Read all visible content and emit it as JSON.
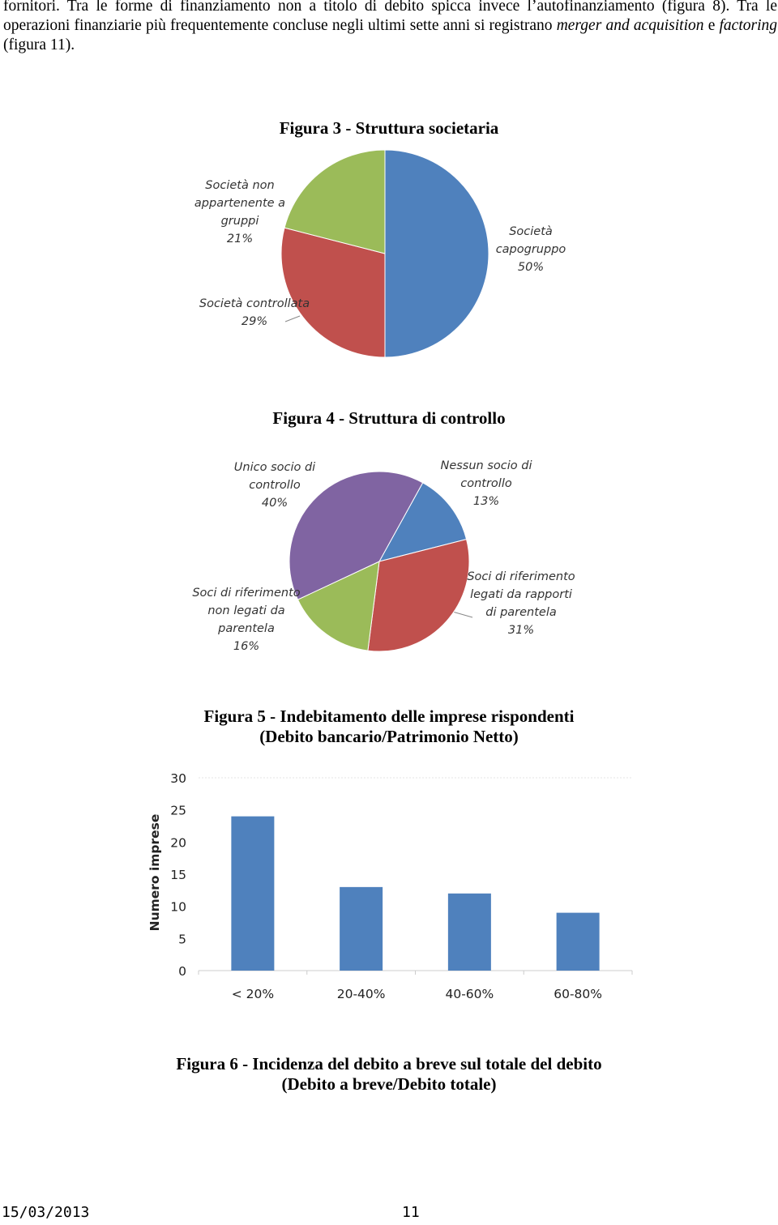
{
  "paragraph": {
    "runs": [
      "fornitori. Tra le forme di finanziamento non a titolo di debito spicca invece l’autofinanziamento (figura 8). Tra le operazioni finanziarie più frequentemente concluse negli ultimi sette anni si registrano ",
      "merger and acquisition",
      " e ",
      "factoring",
      " (figura 11)."
    ]
  },
  "chart_data": [
    {
      "type": "pie",
      "title": [
        "Figura 3 - Struttura societaria"
      ],
      "categories": [
        "Società capogruppo",
        "Società controllata",
        "Società non appartenente a gruppi"
      ],
      "values": [
        50,
        29,
        21
      ],
      "value_labels": [
        "50%",
        "29%",
        "21%"
      ],
      "colors": [
        "#4f81bd",
        "#c0504d",
        "#9bbb59"
      ]
    },
    {
      "type": "pie",
      "title": [
        "Figura 4 - Struttura di controllo"
      ],
      "categories": [
        "Nessun socio di controllo",
        "Soci di riferimento legati da rapporti di parentela",
        "Soci di riferimento non legati da parentela",
        "Unico socio di controllo"
      ],
      "values": [
        13,
        31,
        16,
        40
      ],
      "value_labels": [
        "13%",
        "31%",
        "16%",
        "40%"
      ],
      "colors": [
        "#4f81bd",
        "#c0504d",
        "#9bbb59",
        "#8064a2"
      ]
    },
    {
      "type": "bar",
      "title": [
        "Figura 5 - Indebitamento delle imprese rispondenti",
        "(Debito bancario/Patrimonio Netto)"
      ],
      "y_label": "Numero imprese",
      "categories": [
        "< 20%",
        "20-40%",
        "40-60%",
        "60-80%"
      ],
      "values": [
        24,
        13,
        12,
        9
      ],
      "color": "#4f81bd",
      "ylim": [
        0,
        30
      ],
      "yticks": [
        0,
        5,
        10,
        15,
        20,
        25,
        30
      ],
      "grid": false
    }
  ],
  "figure6": {
    "title": [
      "Figura 6 - Incidenza del debito a breve sul totale del debito",
      "(Debito a breve/Debito totale)"
    ]
  },
  "footer": {
    "date": "15/03/2013",
    "page": "11"
  }
}
